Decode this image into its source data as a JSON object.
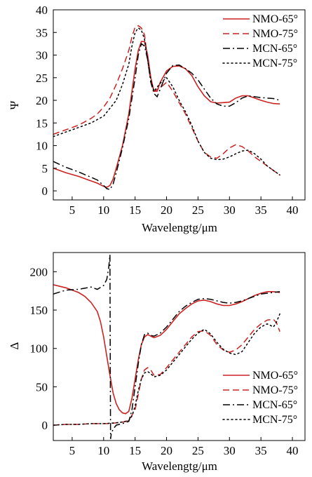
{
  "chart_data": [
    {
      "type": "line",
      "xlabel": "Wavelengtg/μm",
      "ylabel": "Ψ",
      "xlim": [
        2,
        42
      ],
      "ylim": [
        -2,
        40
      ],
      "xticks": [
        5,
        10,
        15,
        20,
        25,
        30,
        35,
        40
      ],
      "yticks": [
        0,
        5,
        10,
        15,
        20,
        25,
        30,
        35,
        40
      ],
      "legend_position": "top-right",
      "series": [
        {
          "name": "NMO-65°",
          "color": "#cc2222",
          "style": "solid",
          "x": [
            2,
            4,
            6,
            8,
            9,
            10,
            10.5,
            11,
            11.5,
            12,
            13,
            14,
            14.5,
            15,
            15.5,
            16,
            16.5,
            17,
            17.5,
            18,
            18.5,
            19,
            20,
            21,
            22,
            23,
            24,
            25,
            26,
            27,
            28,
            29,
            30,
            31,
            32,
            33,
            34,
            35,
            36,
            37,
            38
          ],
          "y": [
            5,
            4,
            3.2,
            2.2,
            1.7,
            1.0,
            0.8,
            1.2,
            2.6,
            5.0,
            10,
            17,
            22,
            27,
            31,
            33,
            33,
            30,
            25,
            22,
            22,
            24,
            26.5,
            27.5,
            27.6,
            27,
            25.5,
            23,
            21,
            19.7,
            19.4,
            19.5,
            19.6,
            20.5,
            21,
            21,
            20.5,
            20,
            19.6,
            19.3,
            19.2
          ]
        },
        {
          "name": "NMO-75°",
          "color": "#cc2222",
          "style": "dashed",
          "x": [
            2,
            4,
            6,
            8,
            9,
            10,
            11,
            12,
            13,
            14,
            14.5,
            15,
            15.5,
            16,
            16.5,
            17,
            17.5,
            18,
            19,
            20,
            21,
            22,
            23,
            24,
            25,
            26,
            27,
            28,
            29,
            30,
            31,
            32,
            33,
            34,
            35,
            36,
            37,
            38
          ],
          "y": [
            12.5,
            13.5,
            14.5,
            16,
            17,
            18.5,
            20.5,
            23.5,
            27,
            31,
            34,
            36.2,
            36.5,
            36,
            34.5,
            29,
            24,
            22,
            22.8,
            24,
            22,
            19.5,
            17,
            14,
            11,
            8.5,
            7.5,
            7.2,
            8.2,
            9.5,
            10.2,
            9.8,
            8.8,
            7.5,
            6.5,
            5.5,
            4.5,
            3.5
          ]
        },
        {
          "name": "MCN-65°",
          "color": "#000000",
          "style": "dashdot",
          "x": [
            2,
            4,
            6,
            8,
            9,
            10,
            10.5,
            11,
            11.5,
            12,
            13,
            14,
            15,
            15.5,
            16,
            16.5,
            17,
            17.5,
            18,
            18.5,
            19,
            20,
            21,
            22,
            23,
            24,
            25,
            26,
            27,
            28,
            29,
            30,
            31,
            32,
            33,
            34,
            35,
            36,
            37,
            38
          ],
          "y": [
            6.5,
            5.2,
            4.2,
            3.0,
            2.4,
            1.2,
            0.5,
            0.3,
            1.5,
            4.0,
            9.5,
            16,
            25,
            30,
            32.5,
            32,
            29,
            24,
            21.5,
            20.8,
            22.5,
            26,
            27.7,
            27.8,
            27,
            26,
            24.5,
            22.5,
            20.5,
            19.2,
            18.7,
            18.7,
            19.5,
            20.5,
            21,
            20.8,
            20.6,
            20.5,
            20.4,
            20
          ]
        },
        {
          "name": "MCN-75°",
          "color": "#000000",
          "style": "dotted",
          "x": [
            2,
            4,
            6,
            8,
            10,
            12,
            13,
            14,
            14.5,
            15,
            15.5,
            16,
            16.5,
            17,
            17.5,
            18,
            19,
            20,
            21,
            22,
            23,
            24,
            25,
            26,
            27,
            28,
            29,
            30,
            31,
            32,
            33,
            34,
            35,
            36,
            37,
            38
          ],
          "y": [
            12,
            13,
            14,
            15,
            16.5,
            20,
            23.5,
            28,
            32,
            35,
            36,
            35.5,
            33.5,
            29,
            24.5,
            22,
            23.8,
            25,
            23,
            20,
            17.5,
            14.5,
            11,
            8.5,
            7.2,
            6.9,
            7,
            7.5,
            8.2,
            8.8,
            9,
            8.2,
            7,
            5.5,
            4.5,
            3.5
          ]
        }
      ]
    },
    {
      "type": "line",
      "xlabel": "Wavelengtg/μm",
      "ylabel": "Δ",
      "xlim": [
        2,
        42
      ],
      "ylim": [
        -20,
        225
      ],
      "xticks": [
        5,
        10,
        15,
        20,
        25,
        30,
        35,
        40
      ],
      "yticks": [
        0,
        50,
        100,
        150,
        200
      ],
      "legend_position": "bottom-right",
      "series": [
        {
          "name": "NMO-65°",
          "color": "#cc2222",
          "style": "solid",
          "x": [
            2,
            4,
            6,
            7,
            8,
            9,
            9.5,
            10,
            10.5,
            11,
            11.5,
            12,
            12.5,
            13,
            13.5,
            14,
            14.5,
            15,
            15.5,
            16,
            16.5,
            17,
            17.5,
            18,
            19,
            20,
            21,
            22,
            23,
            24,
            25,
            26,
            27,
            28,
            29,
            30,
            31,
            32,
            33,
            34,
            35,
            36,
            37,
            38
          ],
          "y": [
            183,
            179,
            173,
            168,
            160,
            148,
            135,
            115,
            90,
            65,
            42,
            28,
            20,
            16,
            15,
            18,
            35,
            60,
            85,
            105,
            115,
            118,
            116,
            114,
            117,
            125,
            135,
            145,
            152,
            158,
            162,
            163,
            161,
            158,
            156,
            156,
            158,
            161,
            165,
            169,
            172,
            174,
            174,
            173
          ]
        },
        {
          "name": "NMO-75°",
          "color": "#cc2222",
          "style": "dashed",
          "x": [
            2,
            4,
            6,
            8,
            10,
            11,
            12,
            13,
            14,
            15,
            15.5,
            16,
            16.5,
            17,
            17.5,
            18,
            19,
            20,
            21,
            22,
            23,
            24,
            25,
            26,
            27,
            28,
            29,
            30,
            31,
            32,
            33,
            34,
            35,
            36,
            37,
            37.5,
            38
          ],
          "y": [
            0,
            1,
            1,
            2,
            2,
            2,
            3,
            4,
            6,
            20,
            40,
            60,
            72,
            75,
            72,
            65,
            66,
            75,
            85,
            95,
            105,
            115,
            122,
            123,
            117,
            105,
            98,
            95,
            98,
            105,
            115,
            125,
            132,
            137,
            138,
            133,
            122
          ]
        },
        {
          "name": "MCN-65°",
          "color": "#000000",
          "style": "dashdot",
          "x": [
            2,
            4,
            6,
            8,
            9,
            10,
            10.5,
            10.8,
            11,
            11.05,
            11.1,
            11.2,
            11.5,
            12,
            13,
            14,
            14.5,
            15,
            15.5,
            16,
            16.5,
            17,
            17.5,
            18,
            19,
            20,
            21,
            22,
            23,
            24,
            25,
            26,
            27,
            28,
            29,
            30,
            31,
            32,
            33,
            34,
            35,
            36,
            37,
            38
          ],
          "y": [
            171,
            176,
            177,
            180,
            177,
            182,
            190,
            205,
            222,
            100,
            -18,
            -12,
            -5,
            0,
            2,
            5,
            20,
            50,
            80,
            105,
            118,
            120,
            117,
            116,
            120,
            128,
            138,
            148,
            155,
            160,
            164,
            165,
            164,
            162,
            160,
            159,
            160,
            162,
            165,
            168,
            171,
            172,
            173,
            174
          ]
        },
        {
          "name": "MCN-75°",
          "color": "#000000",
          "style": "dotted",
          "x": [
            2,
            4,
            6,
            8,
            10,
            12,
            13,
            14,
            14.5,
            15,
            15.5,
            16,
            16.5,
            17,
            17.5,
            18,
            19,
            20,
            21,
            22,
            23,
            24,
            25,
            26,
            27,
            28,
            29,
            30,
            31,
            32,
            33,
            34,
            35,
            36,
            37,
            37.5,
            38
          ],
          "y": [
            0,
            1,
            1,
            2,
            2,
            3,
            4,
            6,
            12,
            25,
            45,
            60,
            68,
            70,
            67,
            63,
            65,
            72,
            82,
            92,
            102,
            112,
            120,
            125,
            119,
            108,
            99,
            94,
            92,
            96,
            108,
            120,
            128,
            132,
            128,
            135,
            145
          ]
        }
      ]
    }
  ]
}
